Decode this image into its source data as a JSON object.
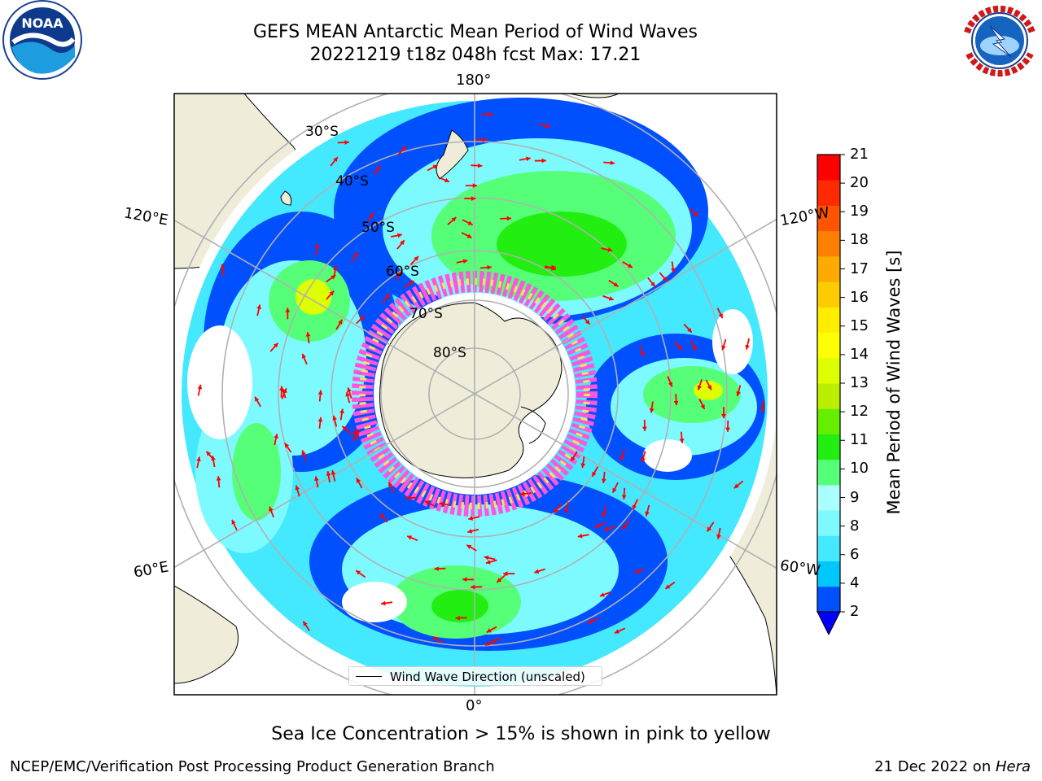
{
  "title": {
    "line1": "GEFS MEAN Antarctic Mean Period of Wind Waves",
    "line2": "20221219 t18z 048h fcst   Max: 17.21"
  },
  "logos": {
    "left": {
      "icon": "noaa-logo",
      "text": "NOAA"
    },
    "right": {
      "icon": "nws-logo",
      "text": "NATIONAL WEATHER SERVICE"
    }
  },
  "map": {
    "projection": "south-polar-stereographic",
    "longitude_labels": [
      "180°",
      "120°E",
      "120°W",
      "60°E",
      "60°W",
      "0°"
    ],
    "latitude_labels": [
      "30°S",
      "40°S",
      "50°S",
      "60°S",
      "70°S",
      "80°S"
    ],
    "land_color": "#efedda",
    "arrow_color": "#ff0000"
  },
  "colorbar": {
    "title": "Mean Period of Wind Waves [s]",
    "ticks": [
      "2",
      "4",
      "6",
      "8",
      "9",
      "10",
      "11",
      "12",
      "13",
      "14",
      "15",
      "16",
      "17",
      "18",
      "19",
      "20",
      "21"
    ],
    "colors": [
      "#0050ff",
      "#00c8ff",
      "#44e8ff",
      "#7dfaff",
      "#aaffff",
      "#55ff77",
      "#22ee11",
      "#66ee00",
      "#bbee00",
      "#ddff00",
      "#ffff00",
      "#ffee00",
      "#ffcc00",
      "#ffaa00",
      "#ff8000",
      "#ff5500",
      "#ff2a00",
      "#ff0000"
    ],
    "under_color": "#0000ff",
    "extend": "min"
  },
  "legend": {
    "label": "Wind Wave Direction (unscaled)"
  },
  "note": "Sea Ice Concentration > 15% is shown in pink to yellow",
  "footer": {
    "left": "NCEP/EMC/Verification Post Processing Product Generation Branch",
    "right_date": "21 Dec 2022 on ",
    "right_host": "Hera"
  }
}
